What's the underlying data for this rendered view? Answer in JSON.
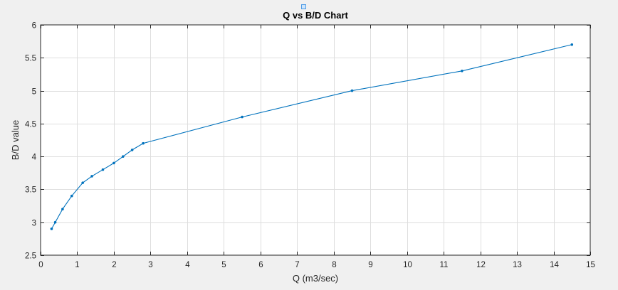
{
  "chart_data": {
    "type": "line",
    "title": "Q vs B/D Chart",
    "xlabel": "Q (m3/sec)",
    "ylabel": "B/D value",
    "xlim": [
      0,
      15
    ],
    "ylim": [
      2.5,
      6
    ],
    "xticks": [
      0,
      1,
      2,
      3,
      4,
      5,
      6,
      7,
      8,
      9,
      10,
      11,
      12,
      13,
      14,
      15
    ],
    "yticks": [
      2.5,
      3,
      3.5,
      4,
      4.5,
      5,
      5.5,
      6
    ],
    "xtick_labels": [
      "0",
      "1",
      "2",
      "3",
      "4",
      "5",
      "6",
      "7",
      "8",
      "9",
      "10",
      "11",
      "12",
      "13",
      "14",
      "15"
    ],
    "ytick_labels": [
      "2.5",
      "3",
      "3.5",
      "4",
      "4.5",
      "5",
      "5.5",
      "6"
    ],
    "grid": true,
    "series": [
      {
        "color": "#0072bd",
        "marker": "point",
        "x": [
          0.3,
          0.4,
          0.6,
          0.85,
          1.15,
          1.4,
          1.7,
          2.0,
          2.25,
          2.5,
          2.8,
          5.5,
          8.5,
          11.5,
          14.5
        ],
        "y": [
          2.9,
          3.0,
          3.2,
          3.4,
          3.6,
          3.7,
          3.8,
          3.9,
          4.0,
          4.1,
          4.2,
          4.6,
          5.0,
          5.3,
          5.7
        ]
      }
    ]
  },
  "toolbar": {
    "edit_icon": "square-edit-icon",
    "accent_color": "#4d9be6"
  }
}
